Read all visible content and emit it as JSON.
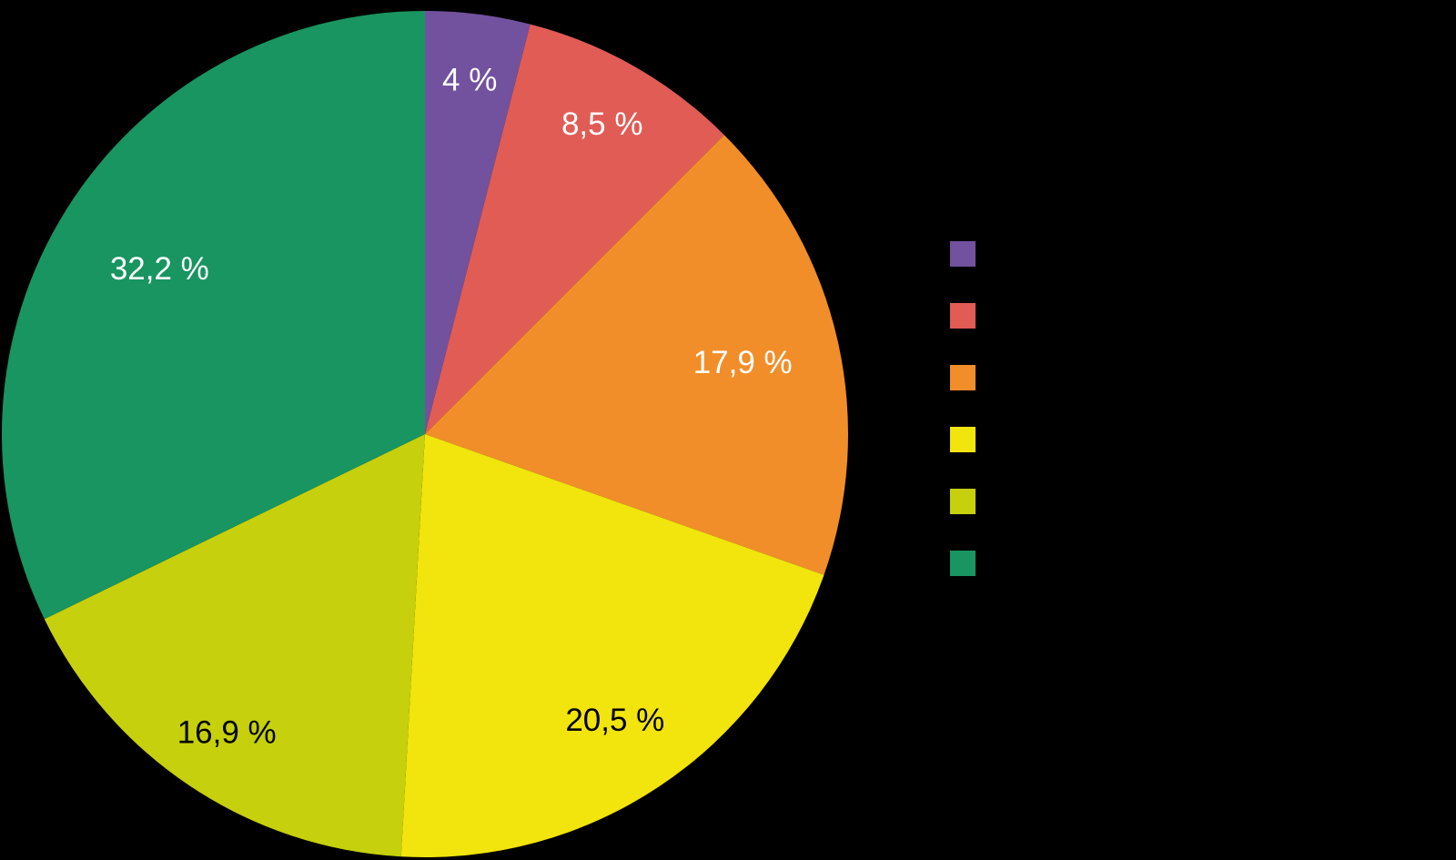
{
  "canvas": {
    "background": "#000000"
  },
  "chart_data": {
    "type": "pie",
    "title": "",
    "start_angle_deg": 0,
    "direction": "clockwise",
    "value_suffix": "%",
    "decimal_separator": ",",
    "slices": [
      {
        "name": "slice-purple",
        "value": 4,
        "label": "4 %",
        "color": "#72519E",
        "label_color": "#FFFFFF",
        "label_radius_frac": 0.845
      },
      {
        "name": "slice-red",
        "value": 8.5,
        "label": "8,5 %",
        "color": "#E05C55",
        "label_color": "#FFFFFF",
        "label_radius_frac": 0.845
      },
      {
        "name": "slice-orange",
        "value": 17.9,
        "label": "17,9 %",
        "color": "#F18E29",
        "label_color": "#FFFFFF",
        "label_radius_frac": 0.77
      },
      {
        "name": "slice-yellow",
        "value": 20.5,
        "label": "20,5 %",
        "color": "#F2E40D",
        "label_color": "#000000",
        "label_radius_frac": 0.81
      },
      {
        "name": "slice-olive",
        "value": 16.9,
        "label": "16,9 %",
        "color": "#C6D00C",
        "label_color": "#000000",
        "label_radius_frac": 0.845
      },
      {
        "name": "slice-green",
        "value": 32.2,
        "label": "32,2 %",
        "color": "#189560",
        "label_color": "#FFFFFF",
        "label_radius_frac": 0.74
      }
    ],
    "legend": {
      "position": "right",
      "labels_visible": false,
      "swatch_colors": [
        "#72519E",
        "#E05C55",
        "#F18E29",
        "#F2E40D",
        "#C6D00C",
        "#189560"
      ]
    }
  }
}
